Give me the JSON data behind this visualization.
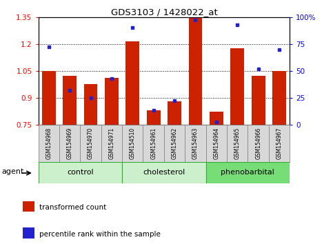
{
  "title": "GDS3103 / 1428022_at",
  "samples": [
    "GSM154968",
    "GSM154969",
    "GSM154970",
    "GSM154971",
    "GSM154510",
    "GSM154961",
    "GSM154962",
    "GSM154963",
    "GSM154964",
    "GSM154965",
    "GSM154966",
    "GSM154967"
  ],
  "transformed_count": [
    1.047,
    1.02,
    0.975,
    1.01,
    1.215,
    0.83,
    0.88,
    1.348,
    0.82,
    1.175,
    1.02,
    1.05
  ],
  "percentile_rank": [
    72,
    32,
    25,
    43,
    90,
    13,
    22,
    97,
    2,
    93,
    52,
    70
  ],
  "groups": [
    {
      "label": "control",
      "start": 0,
      "end": 4
    },
    {
      "label": "cholesterol",
      "start": 4,
      "end": 8
    },
    {
      "label": "phenobarbital",
      "start": 8,
      "end": 12
    }
  ],
  "group_colors": [
    "#ccf0cc",
    "#ccf0cc",
    "#77dd77"
  ],
  "ylim_left": [
    0.75,
    1.35
  ],
  "ylim_right": [
    0,
    100
  ],
  "yticks_left": [
    0.75,
    0.9,
    1.05,
    1.2,
    1.35
  ],
  "yticks_right": [
    0,
    25,
    50,
    75,
    100
  ],
  "ytick_labels_left": [
    "0.75",
    "0.9",
    "1.05",
    "1.2",
    "1.35"
  ],
  "ytick_labels_right": [
    "0",
    "25",
    "50",
    "75",
    "100%"
  ],
  "hlines": [
    0.9,
    1.05,
    1.2
  ],
  "bar_color": "#cc2200",
  "dot_color": "#2222cc",
  "bar_bottom": 0.75,
  "agent_label": "agent",
  "sample_box_color": "#d8d8d8",
  "sample_box_border": "#888888",
  "group_border_color": "#33aa33",
  "legend_bar_label": "transformed count",
  "legend_dot_label": "percentile rank within the sample"
}
